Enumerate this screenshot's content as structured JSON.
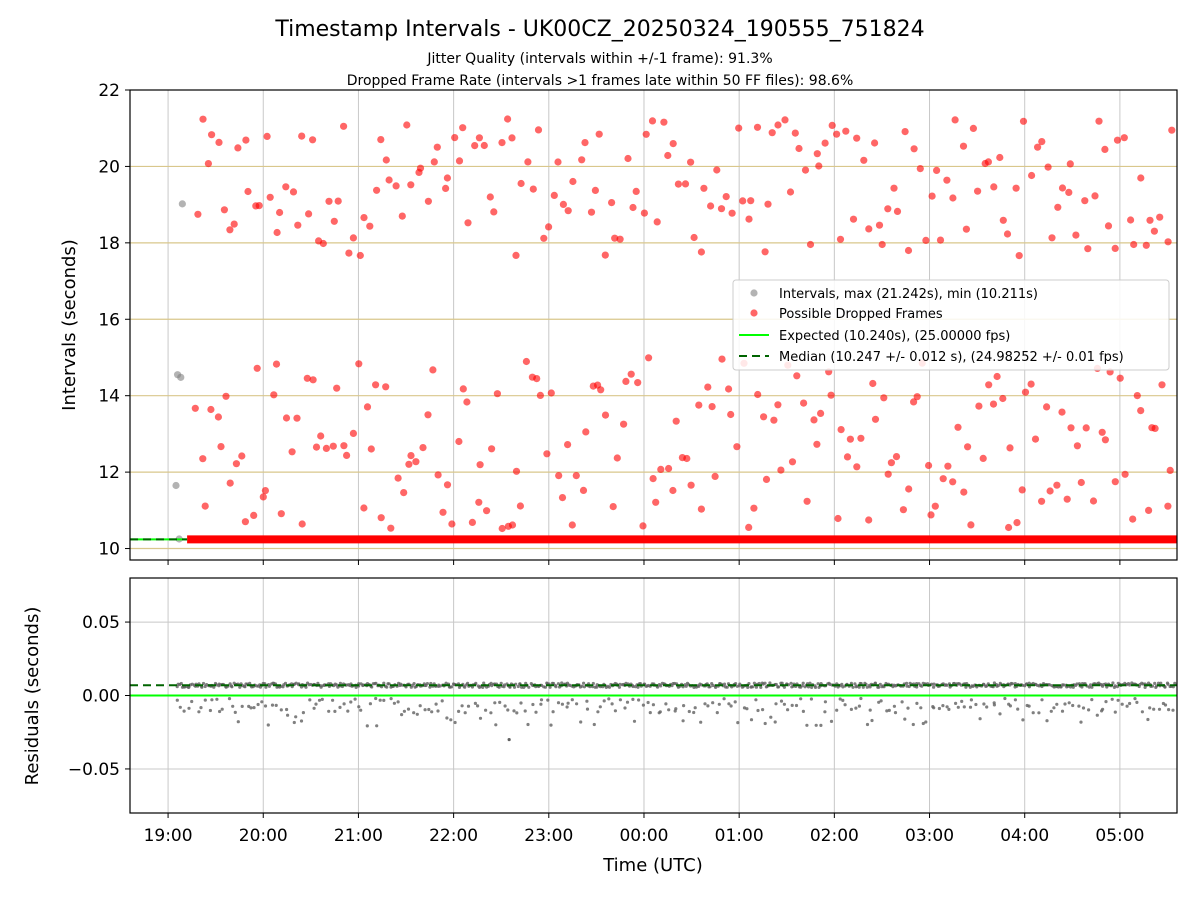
{
  "chart_data": {
    "type": "scatter",
    "title": "Timestamp Intervals - UK00CZ_20250324_190555_751824",
    "subtitle_1": "Jitter Quality (intervals within +/-1 frame): 91.3%",
    "subtitle_2": "Dropped Frame Rate (intervals >1 frames late within 50 FF files): 98.6%",
    "xlabel": "Time (UTC)",
    "x_ticks": [
      "19:00",
      "20:00",
      "21:00",
      "22:00",
      "23:00",
      "00:00",
      "01:00",
      "02:00",
      "03:00",
      "04:00",
      "05:00"
    ],
    "x_range": [
      "18:36",
      "05:36"
    ],
    "top": {
      "ylabel": "Intervals (seconds)",
      "ylim": [
        9.7,
        22.0
      ],
      "y_ticks": [
        "10",
        "12",
        "14",
        "16",
        "18",
        "20",
        "22"
      ],
      "y_tick_values": [
        10,
        12,
        14,
        16,
        18,
        20,
        22
      ],
      "gridlines": "horizontal tan at 10,12,14,16,18,20; vertical gray at hour ticks",
      "legend": {
        "position": "right-middle",
        "entries": [
          "Intervals, max (21.242s), min (10.211s)",
          "Possible Dropped Frames",
          "Expected (10.240s), (25.00000 fps)",
          "Median (10.247 +/- 0.012 s), (24.98252 +/- 0.01 fps)"
        ]
      },
      "expected_interval": 10.24,
      "median_interval": 10.247,
      "gray_points": [
        {
          "x": "19:05",
          "y": 11.65
        },
        {
          "x": "19:06",
          "y": 14.55
        },
        {
          "x": "19:08",
          "y": 14.48
        },
        {
          "x": "19:09",
          "y": 19.02
        },
        {
          "x": "19:07",
          "y": 10.25
        }
      ],
      "baseline_band": {
        "x_start": "19:12",
        "x_end": "05:36",
        "y": 10.24
      },
      "dropped_points_upper_count": 187,
      "dropped_points_lower_count": 196
    },
    "bottom": {
      "ylabel": "Residuals (seconds)",
      "ylim": [
        -0.08,
        0.08
      ],
      "y_ticks": [
        "0.05",
        "0.00",
        "−0.05"
      ],
      "y_tick_values": [
        0.05,
        0.0,
        -0.05
      ],
      "expected_residual": 0.0,
      "median_residual": 0.007
    },
    "colors": {
      "dropped": "#ff0000",
      "intervals": "#808080",
      "expected": "#00ff00",
      "median": "#006400",
      "hgrid_top": "#d9c78c",
      "grid": "#c8c8c8"
    }
  }
}
